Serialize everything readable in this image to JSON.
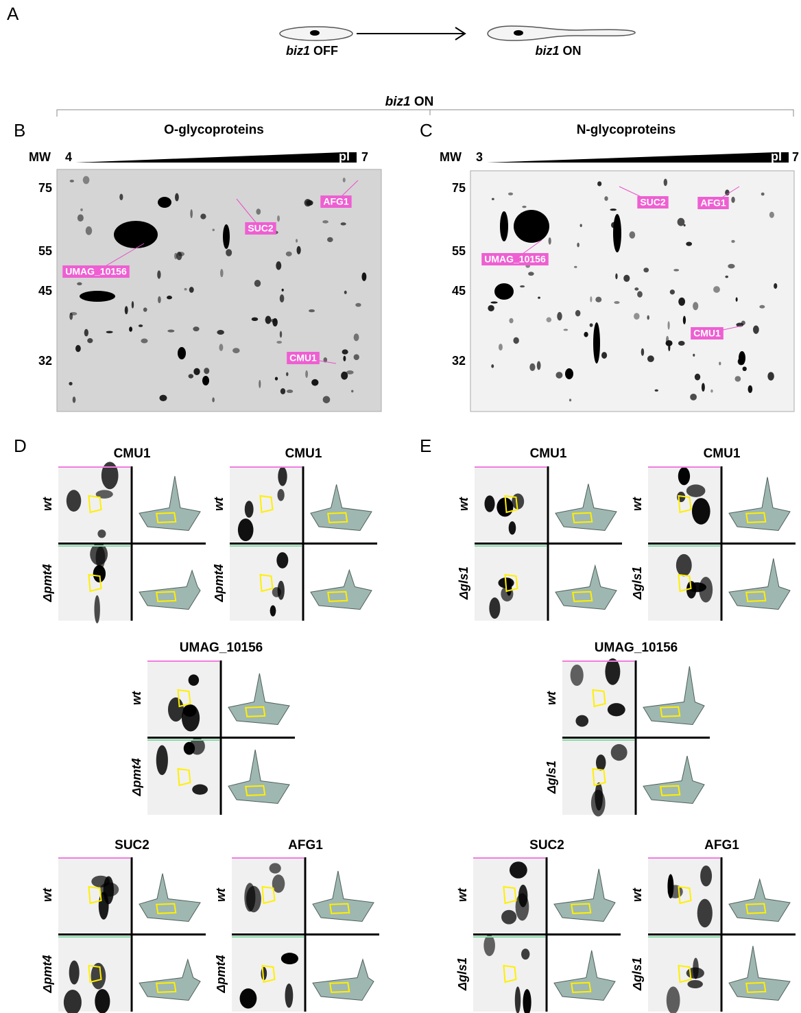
{
  "panel_a": {
    "label": "A",
    "cells": [
      {
        "gene": "biz1",
        "state": "OFF"
      },
      {
        "gene": "biz1",
        "state": "ON"
      }
    ]
  },
  "bracket": {
    "gene": "biz1",
    "state": "ON"
  },
  "gels": [
    {
      "label": "B",
      "title": "O-glycoproteins",
      "mw_label": "MW",
      "pi_start": "4",
      "pi_label": "pI",
      "pi_end": "7",
      "mw_ticks": [
        "75",
        "55",
        "45",
        "32"
      ],
      "spots": [
        "AFG1",
        "SUC2",
        "UMAG_10156",
        "CMU1"
      ]
    },
    {
      "label": "C",
      "title": "N-glycoproteins",
      "mw_label": "MW",
      "pi_start": "3",
      "pi_label": "pI",
      "pi_end": "7",
      "mw_ticks": [
        "75",
        "55",
        "45",
        "32"
      ],
      "spots": [
        "SUC2",
        "AFG1",
        "UMAG_10156",
        "CMU1"
      ]
    }
  ],
  "comparisons": [
    {
      "label": "D",
      "blocks": [
        {
          "title": "CMU1",
          "rows": [
            "wt",
            "Δpmt4"
          ]
        },
        {
          "title": "CMU1",
          "rows": [
            "wt",
            "Δpmt4"
          ]
        },
        {
          "title": "UMAG_10156",
          "rows": [
            "wt",
            "Δpmt4"
          ]
        },
        {
          "title": "SUC2",
          "rows": [
            "wt",
            "Δpmt4"
          ]
        },
        {
          "title": "AFG1",
          "rows": [
            "wt",
            "Δpmt4"
          ]
        }
      ]
    },
    {
      "label": "E",
      "blocks": [
        {
          "title": "CMU1",
          "rows": [
            "wt",
            "Δgls1"
          ]
        },
        {
          "title": "CMU1",
          "rows": [
            "wt",
            "Δgls1"
          ]
        },
        {
          "title": "UMAG_10156",
          "rows": [
            "wt",
            "Δgls1"
          ]
        },
        {
          "title": "SUC2",
          "rows": [
            "wt",
            "Δgls1"
          ]
        },
        {
          "title": "AFG1",
          "rows": [
            "wt",
            "Δgls1"
          ]
        }
      ]
    }
  ]
}
